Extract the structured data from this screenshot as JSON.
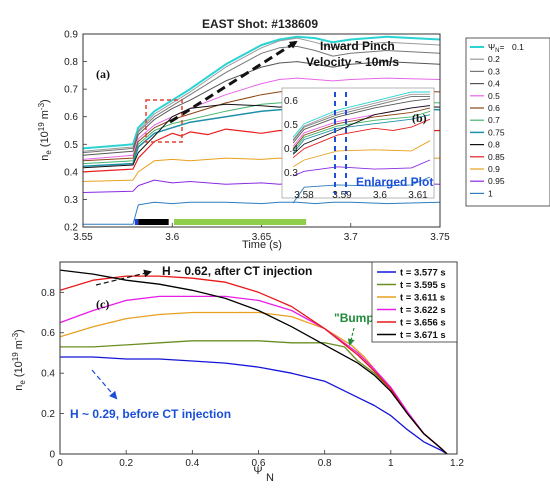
{
  "chart_data": [
    {
      "type": "line",
      "panel_label": "(a)",
      "title": "EAST Shot: #138609",
      "xlabel": "Time (s)",
      "ylabel": "n_e (10^19 m^-3)",
      "xlim": [
        3.55,
        3.75
      ],
      "ylim": [
        0.2,
        0.9
      ],
      "xticks": [
        "3.55",
        "3.6",
        "3.65",
        "3.7",
        "3.75"
      ],
      "yticks": [
        "0.2",
        "0.3",
        "0.4",
        "0.5",
        "0.6",
        "0.7",
        "0.8",
        "0.9"
      ],
      "legend_title": "Ψ_N",
      "legend_position": "right",
      "annotation": [
        "Inward Pinch",
        "Velocity ~ 10m/s"
      ],
      "bar_segments": [
        {
          "x0": 3.579,
          "x1": 3.581,
          "color": "#1f3fd0"
        },
        {
          "x0": 3.581,
          "x1": 3.598,
          "color": "#000000"
        },
        {
          "x0": 3.601,
          "x1": 3.675,
          "color": "#8fce4a"
        }
      ],
      "series": [
        {
          "name": "0.1",
          "color": "#2ad4d4",
          "width": 2.0,
          "x": [
            3.55,
            3.578,
            3.581,
            3.59,
            3.6,
            3.61,
            3.63,
            3.65,
            3.66,
            3.67,
            3.68,
            3.69,
            3.7,
            3.72,
            3.75
          ],
          "y": [
            0.485,
            0.5,
            0.56,
            0.62,
            0.66,
            0.7,
            0.79,
            0.86,
            0.88,
            0.89,
            0.885,
            0.87,
            0.88,
            0.89,
            0.88
          ]
        },
        {
          "name": "0.2",
          "color": "#9a9a9a",
          "width": 1.0,
          "x": [
            3.55,
            3.578,
            3.581,
            3.59,
            3.6,
            3.61,
            3.63,
            3.65,
            3.66,
            3.67,
            3.68,
            3.69,
            3.7,
            3.72,
            3.75
          ],
          "y": [
            0.475,
            0.49,
            0.55,
            0.61,
            0.65,
            0.69,
            0.78,
            0.85,
            0.875,
            0.885,
            0.87,
            0.85,
            0.86,
            0.87,
            0.86
          ]
        },
        {
          "name": "0.3",
          "color": "#777777",
          "width": 1.0,
          "x": [
            3.55,
            3.578,
            3.581,
            3.59,
            3.6,
            3.61,
            3.63,
            3.65,
            3.66,
            3.67,
            3.68,
            3.69,
            3.7,
            3.72,
            3.75
          ],
          "y": [
            0.47,
            0.485,
            0.545,
            0.6,
            0.64,
            0.68,
            0.76,
            0.83,
            0.85,
            0.855,
            0.84,
            0.82,
            0.83,
            0.84,
            0.83
          ]
        },
        {
          "name": "0.4",
          "color": "#555555",
          "width": 1.0,
          "x": [
            3.55,
            3.578,
            3.581,
            3.59,
            3.6,
            3.61,
            3.63,
            3.65,
            3.66,
            3.67,
            3.68,
            3.69,
            3.7,
            3.72,
            3.75
          ],
          "y": [
            0.46,
            0.475,
            0.535,
            0.59,
            0.63,
            0.66,
            0.73,
            0.78,
            0.795,
            0.8,
            0.79,
            0.78,
            0.79,
            0.8,
            0.79
          ]
        },
        {
          "name": "0.5",
          "color": "#e866e8",
          "width": 1.0,
          "x": [
            3.55,
            3.578,
            3.581,
            3.59,
            3.6,
            3.61,
            3.63,
            3.65,
            3.66,
            3.67,
            3.68,
            3.69,
            3.7,
            3.72,
            3.75
          ],
          "y": [
            0.445,
            0.46,
            0.52,
            0.57,
            0.6,
            0.63,
            0.68,
            0.72,
            0.735,
            0.74,
            0.735,
            0.73,
            0.735,
            0.74,
            0.735
          ]
        },
        {
          "name": "0.6",
          "color": "#8b4513",
          "width": 1.0,
          "x": [
            3.55,
            3.578,
            3.581,
            3.59,
            3.6,
            3.61,
            3.63,
            3.65,
            3.66,
            3.67,
            3.68,
            3.69,
            3.7,
            3.72,
            3.75
          ],
          "y": [
            0.44,
            0.45,
            0.51,
            0.56,
            0.59,
            0.61,
            0.65,
            0.68,
            0.69,
            0.695,
            0.69,
            0.685,
            0.69,
            0.695,
            0.69
          ]
        },
        {
          "name": "0.7",
          "color": "#46b46e",
          "width": 1.0,
          "x": [
            3.55,
            3.578,
            3.581,
            3.59,
            3.6,
            3.61,
            3.63,
            3.65,
            3.66,
            3.67,
            3.68,
            3.69,
            3.7,
            3.72,
            3.75
          ],
          "y": [
            0.43,
            0.44,
            0.5,
            0.55,
            0.575,
            0.59,
            0.62,
            0.645,
            0.65,
            0.655,
            0.65,
            0.645,
            0.65,
            0.655,
            0.65
          ]
        },
        {
          "name": "0.75",
          "color": "#1e90a8",
          "width": 1.5,
          "x": [
            3.55,
            3.578,
            3.581,
            3.59,
            3.6,
            3.61,
            3.63,
            3.65,
            3.66,
            3.67,
            3.68,
            3.69,
            3.7,
            3.72,
            3.75
          ],
          "y": [
            0.42,
            0.43,
            0.49,
            0.54,
            0.56,
            0.58,
            0.6,
            0.62,
            0.625,
            0.63,
            0.625,
            0.62,
            0.625,
            0.63,
            0.625
          ]
        },
        {
          "name": "0.8",
          "color": "#111111",
          "width": 1.0,
          "x": [
            3.55,
            3.578,
            3.581,
            3.59,
            3.6,
            3.61,
            3.63,
            3.65,
            3.66,
            3.67,
            3.68,
            3.69,
            3.7,
            3.72,
            3.75
          ],
          "y": [
            0.415,
            0.425,
            0.47,
            0.53,
            0.6,
            0.63,
            0.645,
            0.64,
            0.635,
            0.64,
            0.635,
            0.63,
            0.635,
            0.64,
            0.635
          ]
        },
        {
          "name": "0.85",
          "color": "#e82020",
          "width": 1.2,
          "x": [
            3.55,
            3.578,
            3.581,
            3.59,
            3.6,
            3.605,
            3.61,
            3.62,
            3.63,
            3.65,
            3.66,
            3.68,
            3.7,
            3.72,
            3.75
          ],
          "y": [
            0.4,
            0.41,
            0.45,
            0.51,
            0.54,
            0.53,
            0.545,
            0.535,
            0.555,
            0.54,
            0.55,
            0.545,
            0.55,
            0.545,
            0.55
          ]
        },
        {
          "name": "0.9",
          "color": "#e8a020",
          "width": 1.0,
          "x": [
            3.55,
            3.578,
            3.581,
            3.59,
            3.6,
            3.61,
            3.63,
            3.65,
            3.66,
            3.67,
            3.68,
            3.69,
            3.7,
            3.72,
            3.75
          ],
          "y": [
            0.365,
            0.37,
            0.4,
            0.44,
            0.445,
            0.44,
            0.45,
            0.445,
            0.45,
            0.445,
            0.45,
            0.445,
            0.45,
            0.445,
            0.45
          ]
        },
        {
          "name": "0.95",
          "color": "#8a2be2",
          "width": 1.0,
          "x": [
            3.55,
            3.578,
            3.581,
            3.59,
            3.6,
            3.61,
            3.63,
            3.65,
            3.66,
            3.67,
            3.68,
            3.69,
            3.7,
            3.72,
            3.75
          ],
          "y": [
            0.325,
            0.33,
            0.35,
            0.37,
            0.36,
            0.365,
            0.355,
            0.36,
            0.355,
            0.36,
            0.355,
            0.36,
            0.355,
            0.36,
            0.355
          ]
        },
        {
          "name": "1",
          "color": "#2e7dbf",
          "width": 1.0,
          "x": [
            3.55,
            3.578,
            3.581,
            3.59,
            3.6,
            3.61,
            3.63,
            3.65,
            3.66,
            3.67,
            3.68,
            3.69,
            3.7,
            3.72,
            3.75
          ],
          "y": [
            0.21,
            0.21,
            0.28,
            0.29,
            0.285,
            0.29,
            0.29,
            0.285,
            0.29,
            0.29,
            0.285,
            0.29,
            0.29,
            0.285,
            0.29
          ]
        }
      ]
    },
    {
      "type": "line",
      "panel_label": "(b)",
      "inset_caption": "Enlarged Plot",
      "xticks": [
        "3.58",
        "3.59",
        "3.6",
        "3.61"
      ],
      "yticks": [
        "0.6",
        "0.5",
        "0.4",
        "0.3"
      ]
    },
    {
      "type": "line",
      "panel_label": "(c)",
      "xlabel": "Ψ_N",
      "ylabel": "n_e (10^19 m^-3)",
      "xlim": [
        0,
        1.2
      ],
      "ylim": [
        0,
        0.95
      ],
      "xticks": [
        "0",
        "0.2",
        "0.4",
        "0.6",
        "0.8",
        "1",
        "1.2"
      ],
      "yticks": [
        "0",
        "0.2",
        "0.4",
        "0.6",
        "0.8"
      ],
      "legend_position": "top-right",
      "annotations": {
        "after": "H ~ 0.62, after CT injection",
        "before": "H ~ 0.29, before CT injection",
        "bump": "\"Bump\""
      },
      "series": [
        {
          "name": "t = 3.577 s",
          "color": "#1515d8",
          "x": [
            0,
            0.1,
            0.2,
            0.3,
            0.4,
            0.5,
            0.6,
            0.7,
            0.8,
            0.9,
            0.95,
            1.0,
            1.05,
            1.1,
            1.15,
            1.17
          ],
          "y": [
            0.48,
            0.48,
            0.47,
            0.47,
            0.46,
            0.45,
            0.43,
            0.4,
            0.36,
            0.28,
            0.24,
            0.19,
            0.12,
            0.06,
            0.02,
            0.0
          ]
        },
        {
          "name": "t = 3.595 s",
          "color": "#6b8e23",
          "x": [
            0,
            0.1,
            0.2,
            0.3,
            0.4,
            0.5,
            0.6,
            0.7,
            0.8,
            0.86,
            0.9,
            0.95,
            1.0,
            1.05,
            1.1,
            1.15,
            1.17
          ],
          "y": [
            0.53,
            0.53,
            0.54,
            0.55,
            0.56,
            0.56,
            0.56,
            0.55,
            0.55,
            0.53,
            0.46,
            0.4,
            0.32,
            0.2,
            0.1,
            0.03,
            0.0
          ]
        },
        {
          "name": "t = 3.611 s",
          "color": "#e8a020",
          "x": [
            0,
            0.1,
            0.2,
            0.3,
            0.4,
            0.5,
            0.6,
            0.7,
            0.8,
            0.88,
            0.92,
            0.95,
            1.0,
            1.05,
            1.1,
            1.15,
            1.17
          ],
          "y": [
            0.58,
            0.63,
            0.67,
            0.69,
            0.7,
            0.7,
            0.7,
            0.68,
            0.62,
            0.54,
            0.48,
            0.42,
            0.32,
            0.2,
            0.1,
            0.03,
            0.0
          ]
        },
        {
          "name": "t = 3.622 s",
          "color": "#e81ee8",
          "x": [
            0,
            0.1,
            0.2,
            0.3,
            0.4,
            0.5,
            0.6,
            0.7,
            0.8,
            0.9,
            0.95,
            1.0,
            1.05,
            1.1,
            1.15,
            1.17
          ],
          "y": [
            0.65,
            0.71,
            0.76,
            0.78,
            0.78,
            0.78,
            0.76,
            0.71,
            0.62,
            0.5,
            0.42,
            0.33,
            0.21,
            0.1,
            0.03,
            0.0
          ]
        },
        {
          "name": "t = 3.656 s",
          "color": "#e81818",
          "x": [
            0,
            0.1,
            0.2,
            0.3,
            0.4,
            0.5,
            0.6,
            0.7,
            0.8,
            0.9,
            0.95,
            1.0,
            1.05,
            1.1,
            1.15,
            1.17
          ],
          "y": [
            0.81,
            0.86,
            0.88,
            0.88,
            0.87,
            0.85,
            0.8,
            0.73,
            0.62,
            0.49,
            0.41,
            0.32,
            0.2,
            0.1,
            0.03,
            0.0
          ]
        },
        {
          "name": "t = 3.671 s",
          "color": "#000000",
          "x": [
            0,
            0.1,
            0.2,
            0.3,
            0.4,
            0.5,
            0.6,
            0.7,
            0.8,
            0.9,
            0.95,
            1.0,
            1.05,
            1.1,
            1.15,
            1.17
          ],
          "y": [
            0.91,
            0.89,
            0.86,
            0.84,
            0.81,
            0.77,
            0.71,
            0.63,
            0.54,
            0.45,
            0.39,
            0.31,
            0.2,
            0.1,
            0.03,
            0.0
          ]
        }
      ]
    }
  ]
}
